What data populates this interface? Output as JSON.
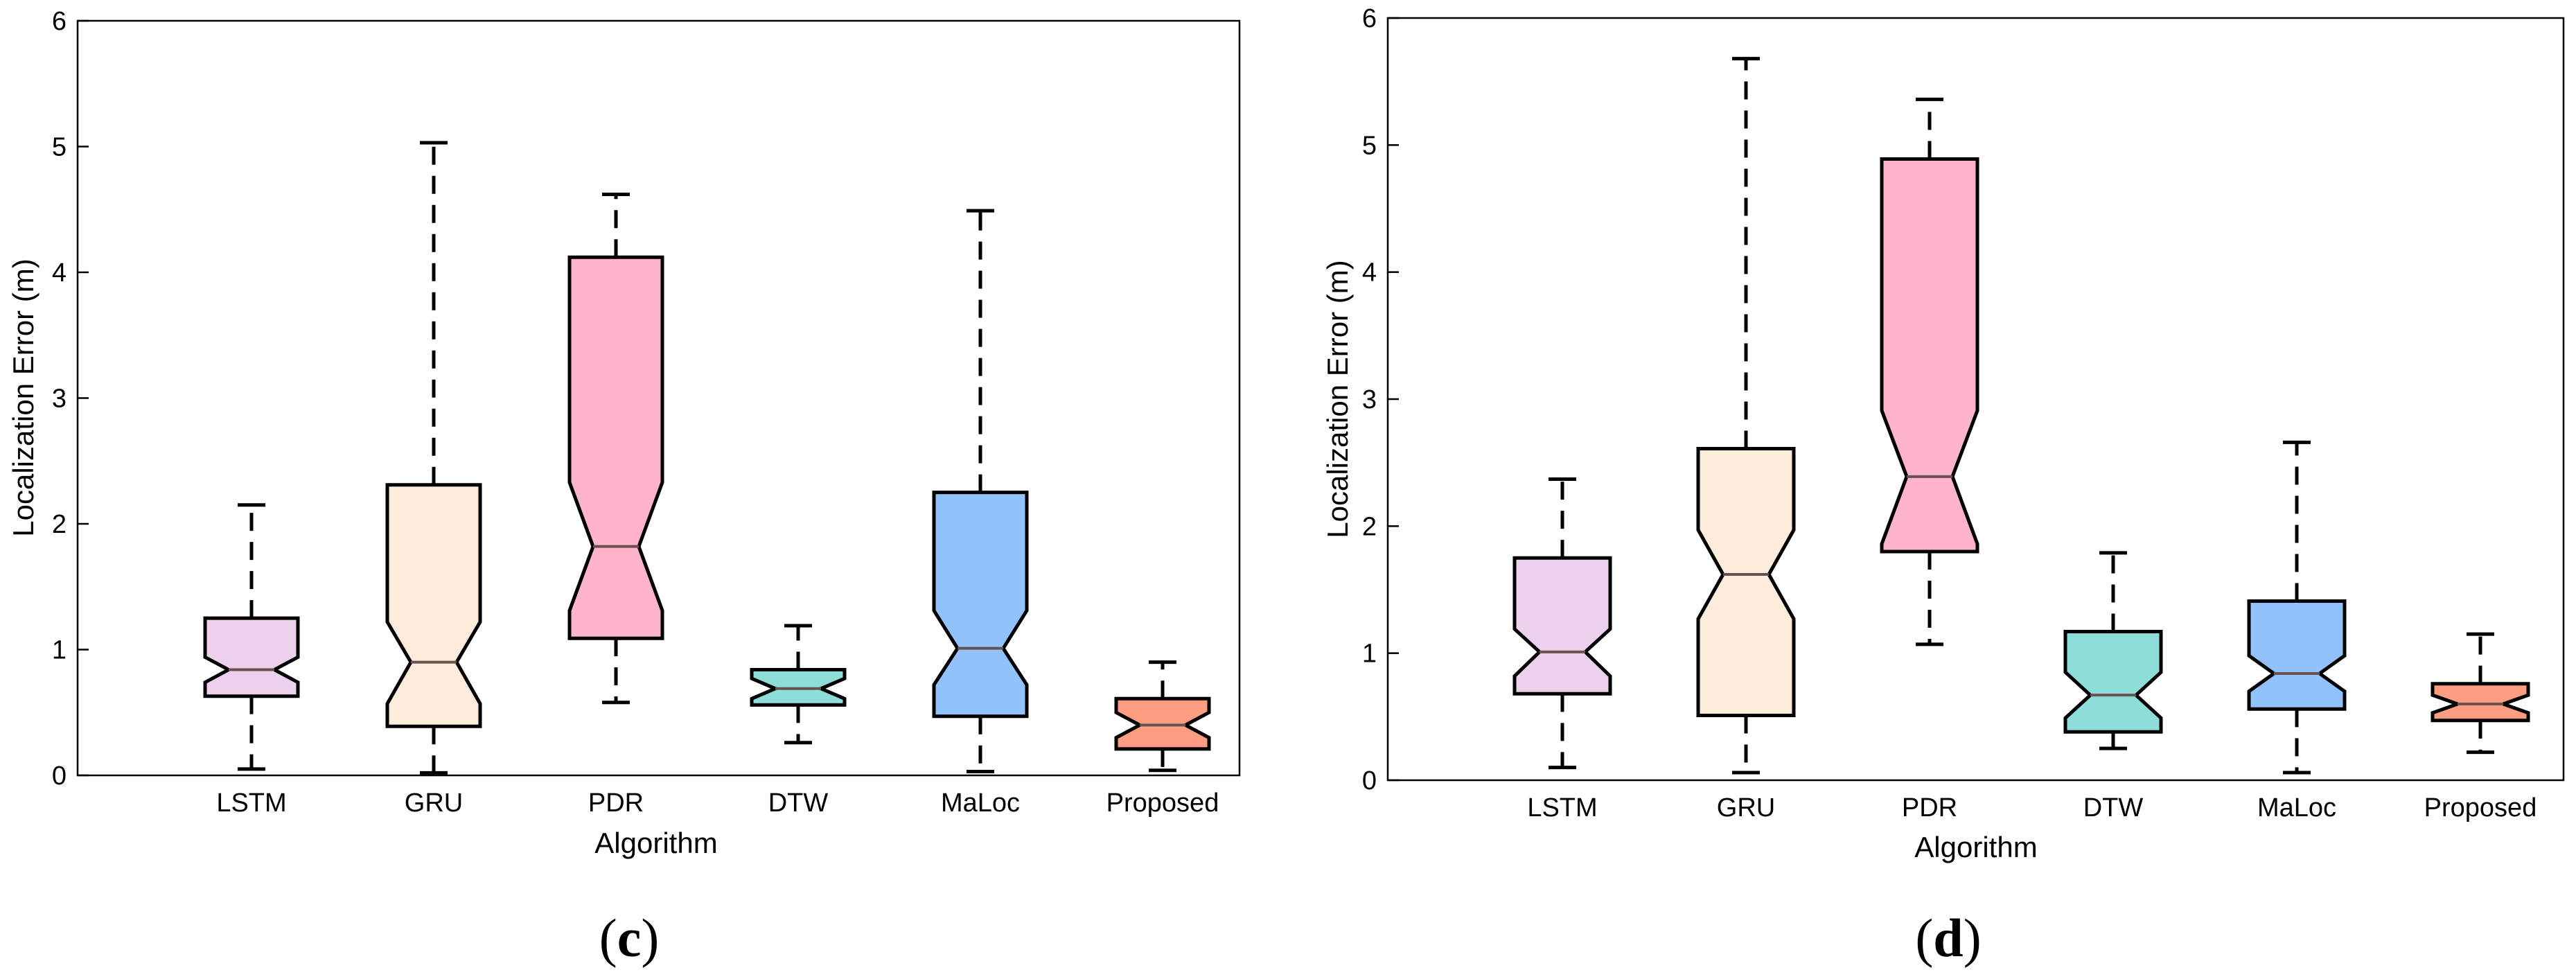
{
  "chart_data": [
    {
      "type": "boxplot",
      "panel_label": "c",
      "xlabel": "Algorithm",
      "ylabel": "Localization Error (m)",
      "ylim": [
        0,
        6
      ],
      "yticks": [
        0,
        1,
        2,
        3,
        4,
        5,
        6
      ],
      "categories": [
        "LSTM",
        "GRU",
        "PDR",
        "DTW",
        "MaLoc",
        "Proposed"
      ],
      "notched": true,
      "grid": false,
      "boxes": [
        {
          "category": "LSTM",
          "whisker_low": 0.05,
          "q1": 0.63,
          "median": 0.84,
          "q3": 1.25,
          "whisker_high": 2.15,
          "notch_low": 0.74,
          "notch_high": 0.94,
          "color": "#ecd0ec"
        },
        {
          "category": "GRU",
          "whisker_low": 0.02,
          "q1": 0.39,
          "median": 0.9,
          "q3": 2.31,
          "whisker_high": 5.03,
          "notch_low": 0.57,
          "notch_high": 1.22,
          "color": "#fdebdc"
        },
        {
          "category": "PDR",
          "whisker_low": 0.58,
          "q1": 1.09,
          "median": 1.82,
          "q3": 4.12,
          "whisker_high": 4.62,
          "notch_low": 1.31,
          "notch_high": 2.33,
          "color": "#ffb3cc"
        },
        {
          "category": "DTW",
          "whisker_low": 0.26,
          "q1": 0.56,
          "median": 0.69,
          "q3": 0.84,
          "whisker_high": 1.19,
          "notch_low": 0.61,
          "notch_high": 0.77,
          "color": "#8dddd9"
        },
        {
          "category": "MaLoc",
          "whisker_low": 0.03,
          "q1": 0.47,
          "median": 1.01,
          "q3": 2.25,
          "whisker_high": 4.49,
          "notch_low": 0.72,
          "notch_high": 1.31,
          "color": "#92c2fb"
        },
        {
          "category": "Proposed",
          "whisker_low": 0.04,
          "q1": 0.21,
          "median": 0.4,
          "q3": 0.61,
          "whisker_high": 0.9,
          "notch_low": 0.3,
          "notch_high": 0.5,
          "color": "#fc9c80"
        }
      ]
    },
    {
      "type": "boxplot",
      "panel_label": "d",
      "xlabel": "Algorithm",
      "ylabel": "Localization Error (m)",
      "ylim": [
        0,
        6
      ],
      "yticks": [
        0,
        1,
        2,
        3,
        4,
        5,
        6
      ],
      "categories": [
        "LSTM",
        "GRU",
        "PDR",
        "DTW",
        "MaLoc",
        "Proposed"
      ],
      "notched": true,
      "grid": false,
      "boxes": [
        {
          "category": "LSTM",
          "whisker_low": 0.1,
          "q1": 0.68,
          "median": 1.01,
          "q3": 1.75,
          "whisker_high": 2.37,
          "notch_low": 0.82,
          "notch_high": 1.19,
          "color": "#ecd0ec"
        },
        {
          "category": "GRU",
          "whisker_low": 0.06,
          "q1": 0.51,
          "median": 1.62,
          "q3": 2.61,
          "whisker_high": 5.68,
          "notch_low": 1.27,
          "notch_high": 1.97,
          "color": "#fdebdc"
        },
        {
          "category": "PDR",
          "whisker_low": 1.07,
          "q1": 1.8,
          "median": 2.39,
          "q3": 4.89,
          "whisker_high": 5.36,
          "notch_low": 1.86,
          "notch_high": 2.91,
          "color": "#ffb3cc"
        },
        {
          "category": "DTW",
          "whisker_low": 0.25,
          "q1": 0.38,
          "median": 0.67,
          "q3": 1.17,
          "whisker_high": 1.79,
          "notch_low": 0.49,
          "notch_high": 0.85,
          "color": "#8dddd9"
        },
        {
          "category": "MaLoc",
          "whisker_low": 0.06,
          "q1": 0.56,
          "median": 0.84,
          "q3": 1.41,
          "whisker_high": 2.66,
          "notch_low": 0.7,
          "notch_high": 0.98,
          "color": "#92c2fb"
        },
        {
          "category": "Proposed",
          "whisker_low": 0.22,
          "q1": 0.47,
          "median": 0.6,
          "q3": 0.76,
          "whisker_high": 1.15,
          "notch_low": 0.53,
          "notch_high": 0.67,
          "color": "#fc9c80"
        }
      ]
    }
  ]
}
